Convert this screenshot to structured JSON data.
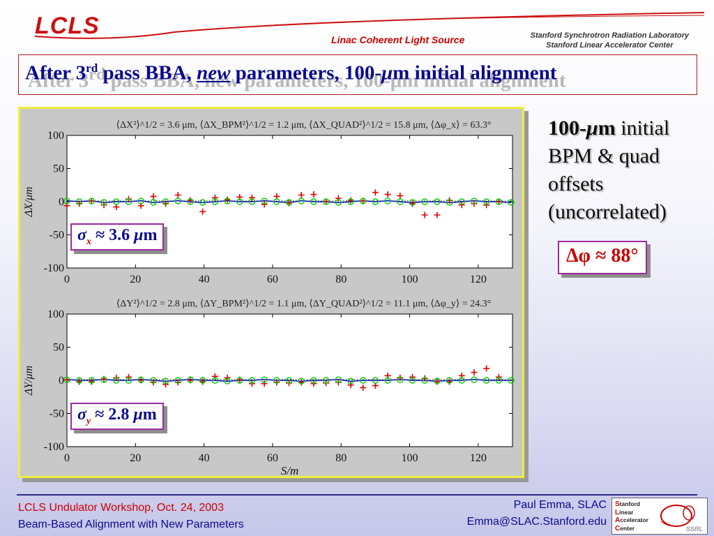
{
  "header": {
    "logo": "LCLS",
    "org": "Linac Coherent Light Source",
    "inst_line1": "Stanford Synchrotron Radiation Laboratory",
    "inst_line2": "Stanford Linear Accelerator Center"
  },
  "title": {
    "part1": "After 3",
    "sup": "rd",
    "part2": " pass BBA, ",
    "new": "new",
    "part3": " parameters, 100-",
    "mu": "μ",
    "part4": "m initial alignment"
  },
  "side": {
    "line1_bold": "100-",
    "line1_mu": "μ",
    "line1_m": "m",
    "line1_rest": " initial",
    "line2": "BPM & quad",
    "line3": "offsets",
    "line4": "(uncorrelated)",
    "phi_box": "Δφ ≈ 88°"
  },
  "sigma_x": {
    "sym": "σ",
    "sub": "x",
    "rest": " ≈ 3.6 ",
    "mu": "μ",
    "unit": "m"
  },
  "sigma_y": {
    "sym": "σ",
    "sub": "y",
    "rest": " ≈ 2.8 ",
    "mu": "μ",
    "unit": "m"
  },
  "footer": {
    "left1": "LCLS Undulator Workshop, Oct. 24, 2003",
    "left2": "Beam-Based Alignment with New Parameters",
    "right1": "Paul Emma, SLAC",
    "right2": "Emma@SLAC.Stanford.edu",
    "logo_s": "S",
    "logo_s_rest": "tanford",
    "logo_l": "L",
    "logo_l_rest": "inear",
    "logo_a": "A",
    "logo_a_rest": "ccelerator",
    "logo_c": "C",
    "logo_c_rest": "enter",
    "logo_tag": "SSRL"
  },
  "colors": {
    "markers_plus": "#e00000",
    "markers_circle": "#00cc00",
    "trajectory": "#0000cc",
    "dotted": "#000000"
  },
  "chart_data": [
    {
      "type": "scatter",
      "stats_text": "⟨ΔX²⟩^1/2 = 3.6 μm, ⟨ΔX_BPM²⟩^1/2 = 1.2 μm, ⟨ΔX_QUAD²⟩^1/2 = 15.8 μm, ⟨Δφ_x⟩ = 63.3°",
      "ylabel": "ΔX/μm",
      "xlim": [
        0,
        130
      ],
      "ylim": [
        -100,
        100
      ],
      "xticks": [
        0,
        20,
        40,
        60,
        80,
        100,
        120
      ],
      "yticks": [
        100,
        50,
        0,
        -50,
        -100
      ],
      "series": [
        {
          "marker": "plus",
          "x": [
            0,
            3.6,
            7.2,
            10.8,
            14.4,
            18,
            21.6,
            25.2,
            28.8,
            32.4,
            36,
            39.6,
            43.2,
            46.8,
            50.4,
            54,
            57.6,
            61.2,
            64.8,
            68.4,
            72,
            75.6,
            79.2,
            82.8,
            86.4,
            90,
            93.6,
            97.2,
            100.8,
            104.4,
            108,
            111.6,
            115.2,
            118.8,
            122.4,
            126
          ],
          "y": [
            -6,
            -3,
            1,
            -5,
            -8,
            4,
            -6,
            8,
            -3,
            10,
            2,
            -15,
            6,
            3,
            7,
            6,
            -4,
            8,
            -2,
            10,
            11,
            0,
            5,
            2,
            1,
            14,
            11,
            9,
            -3,
            -20,
            -20,
            2,
            -5,
            -3,
            -5,
            0
          ]
        },
        {
          "marker": "circle",
          "x": [
            0,
            3.6,
            7.2,
            10.8,
            14.4,
            18,
            21.6,
            25.2,
            28.8,
            32.4,
            36,
            39.6,
            43.2,
            46.8,
            50.4,
            54,
            57.6,
            61.2,
            64.8,
            68.4,
            72,
            75.6,
            79.2,
            82.8,
            86.4,
            90,
            93.6,
            97.2,
            100.8,
            104.4,
            108,
            111.6,
            115.2,
            118.8,
            122.4,
            126,
            129.6
          ],
          "y": [
            1,
            0,
            1,
            -1,
            0,
            0,
            1,
            -1,
            0,
            1,
            0,
            -1,
            0,
            1,
            0,
            0,
            1,
            0,
            -1,
            1,
            0,
            0,
            -1,
            0,
            1,
            0,
            1,
            0,
            -1,
            0,
            0,
            -1,
            0,
            1,
            0,
            0,
            -1
          ]
        }
      ]
    },
    {
      "type": "scatter",
      "stats_text": "⟨ΔY²⟩^1/2 = 2.8 μm, ⟨ΔY_BPM²⟩^1/2 = 1.1 μm, ⟨ΔY_QUAD²⟩^1/2 = 11.1 μm, ⟨Δφ_y⟩ = 24.3°",
      "xlabel": "S/m",
      "ylabel": "ΔY/μm",
      "xlim": [
        0,
        130
      ],
      "ylim": [
        -100,
        100
      ],
      "xticks": [
        0,
        20,
        40,
        60,
        80,
        100,
        120
      ],
      "yticks": [
        100,
        50,
        0,
        -50,
        -100
      ],
      "series": [
        {
          "marker": "plus",
          "x": [
            0,
            3.6,
            7.2,
            10.8,
            14.4,
            18,
            21.6,
            25.2,
            28.8,
            32.4,
            36,
            39.6,
            43.2,
            46.8,
            50.4,
            54,
            57.6,
            61.2,
            64.8,
            68.4,
            72,
            75.6,
            79.2,
            82.8,
            86.4,
            90,
            93.6,
            97.2,
            100.8,
            104.4,
            108,
            111.6,
            115.2,
            118.8,
            122.4,
            126
          ],
          "y": [
            1,
            -2,
            -2,
            2,
            4,
            5,
            0,
            -3,
            -6,
            -3,
            0,
            -2,
            6,
            4,
            1,
            -5,
            -5,
            -3,
            -4,
            -3,
            -5,
            -4,
            -3,
            -7,
            -11,
            -8,
            7,
            4,
            5,
            3,
            -2,
            -2,
            7,
            12,
            18,
            5
          ]
        },
        {
          "marker": "circle",
          "x": [
            0,
            3.6,
            7.2,
            10.8,
            14.4,
            18,
            21.6,
            25.2,
            28.8,
            32.4,
            36,
            39.6,
            43.2,
            46.8,
            50.4,
            54,
            57.6,
            61.2,
            64.8,
            68.4,
            72,
            75.6,
            79.2,
            82.8,
            86.4,
            90,
            93.6,
            97.2,
            100.8,
            104.4,
            108,
            111.6,
            115.2,
            118.8,
            122.4,
            126,
            129.6
          ],
          "y": [
            1,
            0,
            0,
            1,
            0,
            0,
            1,
            0,
            -1,
            0,
            1,
            0,
            0,
            -1,
            0,
            0,
            1,
            0,
            0,
            -1,
            0,
            0,
            1,
            -1,
            0,
            0,
            0,
            1,
            0,
            0,
            -1,
            0,
            0,
            1,
            0,
            0,
            0
          ]
        }
      ]
    }
  ]
}
